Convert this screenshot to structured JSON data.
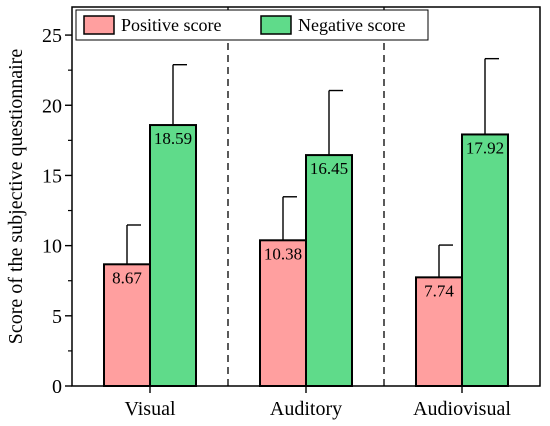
{
  "chart_data": {
    "type": "bar",
    "categories": [
      "Visual",
      "Auditory",
      "Audiovisual"
    ],
    "series": [
      {
        "name": "Positive score",
        "values": [
          8.67,
          10.38,
          7.74
        ],
        "errors": [
          2.8,
          3.1,
          2.3
        ],
        "color": "#ff9f9f"
      },
      {
        "name": "Negative score",
        "values": [
          18.59,
          16.45,
          17.92
        ],
        "errors": [
          4.3,
          4.6,
          5.4
        ],
        "color": "#5fdb8a"
      }
    ],
    "data_labels": {
      "positive": [
        "8.67",
        "10.38",
        "7.74"
      ],
      "negative": [
        "18.59",
        "16.45",
        "17.92"
      ]
    },
    "ylabel": "Score of the subjective questionnaire",
    "xlabel": "",
    "ylim": [
      0,
      27
    ],
    "yticks": [
      0,
      5,
      10,
      15,
      20,
      25
    ],
    "grid": false,
    "legend_position": "top",
    "group_separators": "dashed"
  }
}
